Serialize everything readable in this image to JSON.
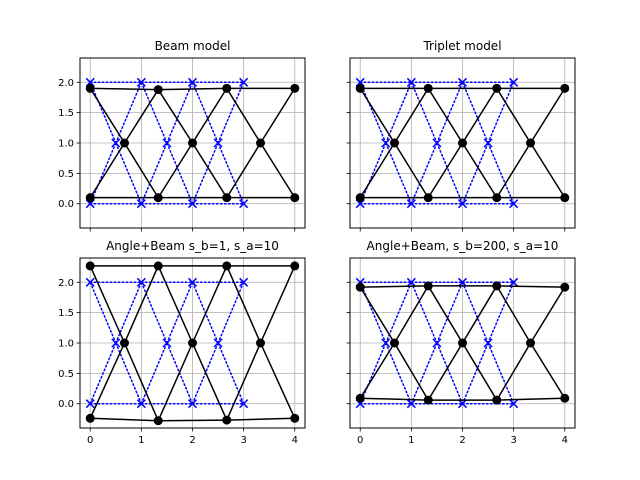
{
  "chart_data": [
    {
      "type": "line",
      "title": "Beam model",
      "xlim": [
        -0.2,
        4.2
      ],
      "ylim": [
        -0.4,
        2.4
      ],
      "xticks": [
        "0",
        "1",
        "2",
        "3",
        "4"
      ],
      "yticks": [
        "0.0",
        "0.5",
        "1.0",
        "1.5",
        "2.0"
      ],
      "show_x_tick_labels": false,
      "show_y_tick_labels": true,
      "grid": true,
      "series": [
        {
          "style": "blue-dotted-x",
          "color": "#0000ff",
          "nodes": [
            [
              0,
              0
            ],
            [
              1,
              0
            ],
            [
              2,
              0
            ],
            [
              3,
              0
            ],
            [
              0.5,
              1
            ],
            [
              1.5,
              1
            ],
            [
              2.5,
              1
            ],
            [
              0,
              2
            ],
            [
              1,
              2
            ],
            [
              2,
              2
            ],
            [
              3,
              2
            ]
          ],
          "edges": [
            [
              0,
              1
            ],
            [
              1,
              2
            ],
            [
              2,
              3
            ],
            [
              7,
              8
            ],
            [
              8,
              9
            ],
            [
              9,
              10
            ],
            [
              0,
              4
            ],
            [
              4,
              7
            ],
            [
              1,
              4
            ],
            [
              4,
              8
            ],
            [
              1,
              5
            ],
            [
              5,
              8
            ],
            [
              2,
              5
            ],
            [
              5,
              9
            ],
            [
              2,
              6
            ],
            [
              6,
              9
            ],
            [
              3,
              6
            ],
            [
              6,
              10
            ]
          ]
        },
        {
          "style": "black-solid-dot",
          "color": "#000000",
          "nodes": [
            [
              0,
              0.1
            ],
            [
              1.33,
              0.1
            ],
            [
              2.67,
              0.1
            ],
            [
              4,
              0.1
            ],
            [
              0.67,
              1
            ],
            [
              2,
              1
            ],
            [
              3.33,
              1
            ],
            [
              0,
              1.9
            ],
            [
              1.33,
              1.88
            ],
            [
              2.67,
              1.9
            ],
            [
              4,
              1.9
            ]
          ],
          "edges": [
            [
              0,
              1
            ],
            [
              1,
              2
            ],
            [
              2,
              3
            ],
            [
              7,
              8
            ],
            [
              8,
              9
            ],
            [
              9,
              10
            ],
            [
              0,
              4
            ],
            [
              4,
              7
            ],
            [
              1,
              4
            ],
            [
              4,
              8
            ],
            [
              1,
              5
            ],
            [
              5,
              8
            ],
            [
              2,
              5
            ],
            [
              5,
              9
            ],
            [
              2,
              6
            ],
            [
              6,
              9
            ],
            [
              3,
              6
            ],
            [
              6,
              10
            ]
          ]
        }
      ]
    },
    {
      "type": "line",
      "title": "Triplet model",
      "xlim": [
        -0.2,
        4.2
      ],
      "ylim": [
        -0.4,
        2.4
      ],
      "xticks": [
        "0",
        "1",
        "2",
        "3",
        "4"
      ],
      "yticks": [
        "0.0",
        "0.5",
        "1.0",
        "1.5",
        "2.0"
      ],
      "show_x_tick_labels": false,
      "show_y_tick_labels": false,
      "grid": true,
      "series": [
        {
          "style": "blue-dotted-x",
          "color": "#0000ff",
          "nodes": [
            [
              0,
              0
            ],
            [
              1,
              0
            ],
            [
              2,
              0
            ],
            [
              3,
              0
            ],
            [
              0.5,
              1
            ],
            [
              1.5,
              1
            ],
            [
              2.5,
              1
            ],
            [
              0,
              2
            ],
            [
              1,
              2
            ],
            [
              2,
              2
            ],
            [
              3,
              2
            ]
          ],
          "edges": [
            [
              0,
              1
            ],
            [
              1,
              2
            ],
            [
              2,
              3
            ],
            [
              7,
              8
            ],
            [
              8,
              9
            ],
            [
              9,
              10
            ],
            [
              0,
              4
            ],
            [
              4,
              7
            ],
            [
              1,
              4
            ],
            [
              4,
              8
            ],
            [
              1,
              5
            ],
            [
              5,
              8
            ],
            [
              2,
              5
            ],
            [
              5,
              9
            ],
            [
              2,
              6
            ],
            [
              6,
              9
            ],
            [
              3,
              6
            ],
            [
              6,
              10
            ]
          ]
        },
        {
          "style": "black-solid-dot",
          "color": "#000000",
          "nodes": [
            [
              0,
              0.1
            ],
            [
              1.33,
              0.1
            ],
            [
              2.67,
              0.1
            ],
            [
              4,
              0.1
            ],
            [
              0.67,
              1
            ],
            [
              2,
              1
            ],
            [
              3.33,
              1
            ],
            [
              0,
              1.9
            ],
            [
              1.33,
              1.9
            ],
            [
              2.67,
              1.9
            ],
            [
              4,
              1.9
            ]
          ],
          "edges": [
            [
              0,
              1
            ],
            [
              1,
              2
            ],
            [
              2,
              3
            ],
            [
              7,
              8
            ],
            [
              8,
              9
            ],
            [
              9,
              10
            ],
            [
              0,
              4
            ],
            [
              4,
              7
            ],
            [
              1,
              4
            ],
            [
              4,
              8
            ],
            [
              1,
              5
            ],
            [
              5,
              8
            ],
            [
              2,
              5
            ],
            [
              5,
              9
            ],
            [
              2,
              6
            ],
            [
              6,
              9
            ],
            [
              3,
              6
            ],
            [
              6,
              10
            ]
          ]
        }
      ]
    },
    {
      "type": "line",
      "title": "Angle+Beam s_b=1, s_a=10",
      "xlim": [
        -0.2,
        4.2
      ],
      "ylim": [
        -0.4,
        2.4
      ],
      "xticks": [
        "0",
        "1",
        "2",
        "3",
        "4"
      ],
      "yticks": [
        "0.0",
        "0.5",
        "1.0",
        "1.5",
        "2.0"
      ],
      "show_x_tick_labels": true,
      "show_y_tick_labels": true,
      "grid": true,
      "series": [
        {
          "style": "blue-dotted-x",
          "color": "#0000ff",
          "nodes": [
            [
              0,
              0
            ],
            [
              1,
              0
            ],
            [
              2,
              0
            ],
            [
              3,
              0
            ],
            [
              0.5,
              1
            ],
            [
              1.5,
              1
            ],
            [
              2.5,
              1
            ],
            [
              0,
              2
            ],
            [
              1,
              2
            ],
            [
              2,
              2
            ],
            [
              3,
              2
            ]
          ],
          "edges": [
            [
              0,
              1
            ],
            [
              1,
              2
            ],
            [
              2,
              3
            ],
            [
              7,
              8
            ],
            [
              8,
              9
            ],
            [
              9,
              10
            ],
            [
              0,
              4
            ],
            [
              4,
              7
            ],
            [
              1,
              4
            ],
            [
              4,
              8
            ],
            [
              1,
              5
            ],
            [
              5,
              8
            ],
            [
              2,
              5
            ],
            [
              5,
              9
            ],
            [
              2,
              6
            ],
            [
              6,
              9
            ],
            [
              3,
              6
            ],
            [
              6,
              10
            ]
          ]
        },
        {
          "style": "black-solid-dot",
          "color": "#000000",
          "nodes": [
            [
              0,
              -0.24
            ],
            [
              1.33,
              -0.28
            ],
            [
              2.67,
              -0.27
            ],
            [
              4,
              -0.24
            ],
            [
              0.67,
              1
            ],
            [
              2,
              1
            ],
            [
              3.33,
              1
            ],
            [
              0,
              2.27
            ],
            [
              1.33,
              2.27
            ],
            [
              2.67,
              2.27
            ],
            [
              4,
              2.27
            ]
          ],
          "edges": [
            [
              0,
              1
            ],
            [
              1,
              2
            ],
            [
              2,
              3
            ],
            [
              7,
              8
            ],
            [
              8,
              9
            ],
            [
              9,
              10
            ],
            [
              0,
              4
            ],
            [
              4,
              7
            ],
            [
              1,
              4
            ],
            [
              4,
              8
            ],
            [
              1,
              5
            ],
            [
              5,
              8
            ],
            [
              2,
              5
            ],
            [
              5,
              9
            ],
            [
              2,
              6
            ],
            [
              6,
              9
            ],
            [
              3,
              6
            ],
            [
              6,
              10
            ]
          ]
        }
      ]
    },
    {
      "type": "line",
      "title": "Angle+Beam, s_b=200, s_a=10",
      "xlim": [
        -0.2,
        4.2
      ],
      "ylim": [
        -0.4,
        2.4
      ],
      "xticks": [
        "0",
        "1",
        "2",
        "3",
        "4"
      ],
      "yticks": [
        "0.0",
        "0.5",
        "1.0",
        "1.5",
        "2.0"
      ],
      "show_x_tick_labels": true,
      "show_y_tick_labels": false,
      "grid": true,
      "series": [
        {
          "style": "blue-dotted-x",
          "color": "#0000ff",
          "nodes": [
            [
              0,
              0
            ],
            [
              1,
              0
            ],
            [
              2,
              0
            ],
            [
              3,
              0
            ],
            [
              0.5,
              1
            ],
            [
              1.5,
              1
            ],
            [
              2.5,
              1
            ],
            [
              0,
              2
            ],
            [
              1,
              2
            ],
            [
              2,
              2
            ],
            [
              3,
              2
            ]
          ],
          "edges": [
            [
              0,
              1
            ],
            [
              1,
              2
            ],
            [
              2,
              3
            ],
            [
              7,
              8
            ],
            [
              8,
              9
            ],
            [
              9,
              10
            ],
            [
              0,
              4
            ],
            [
              4,
              7
            ],
            [
              1,
              4
            ],
            [
              4,
              8
            ],
            [
              1,
              5
            ],
            [
              5,
              8
            ],
            [
              2,
              5
            ],
            [
              5,
              9
            ],
            [
              2,
              6
            ],
            [
              6,
              9
            ],
            [
              3,
              6
            ],
            [
              6,
              10
            ]
          ]
        },
        {
          "style": "black-solid-dot",
          "color": "#000000",
          "nodes": [
            [
              0,
              0.09
            ],
            [
              1.33,
              0.06
            ],
            [
              2.67,
              0.06
            ],
            [
              4,
              0.09
            ],
            [
              0.67,
              1
            ],
            [
              2,
              1
            ],
            [
              3.33,
              1
            ],
            [
              0,
              1.92
            ],
            [
              1.33,
              1.94
            ],
            [
              2.67,
              1.94
            ],
            [
              4,
              1.92
            ]
          ],
          "edges": [
            [
              0,
              1
            ],
            [
              1,
              2
            ],
            [
              2,
              3
            ],
            [
              7,
              8
            ],
            [
              8,
              9
            ],
            [
              9,
              10
            ],
            [
              0,
              4
            ],
            [
              4,
              7
            ],
            [
              1,
              4
            ],
            [
              4,
              8
            ],
            [
              1,
              5
            ],
            [
              5,
              8
            ],
            [
              2,
              5
            ],
            [
              5,
              9
            ],
            [
              2,
              6
            ],
            [
              6,
              9
            ],
            [
              3,
              6
            ],
            [
              6,
              10
            ]
          ]
        }
      ]
    }
  ]
}
